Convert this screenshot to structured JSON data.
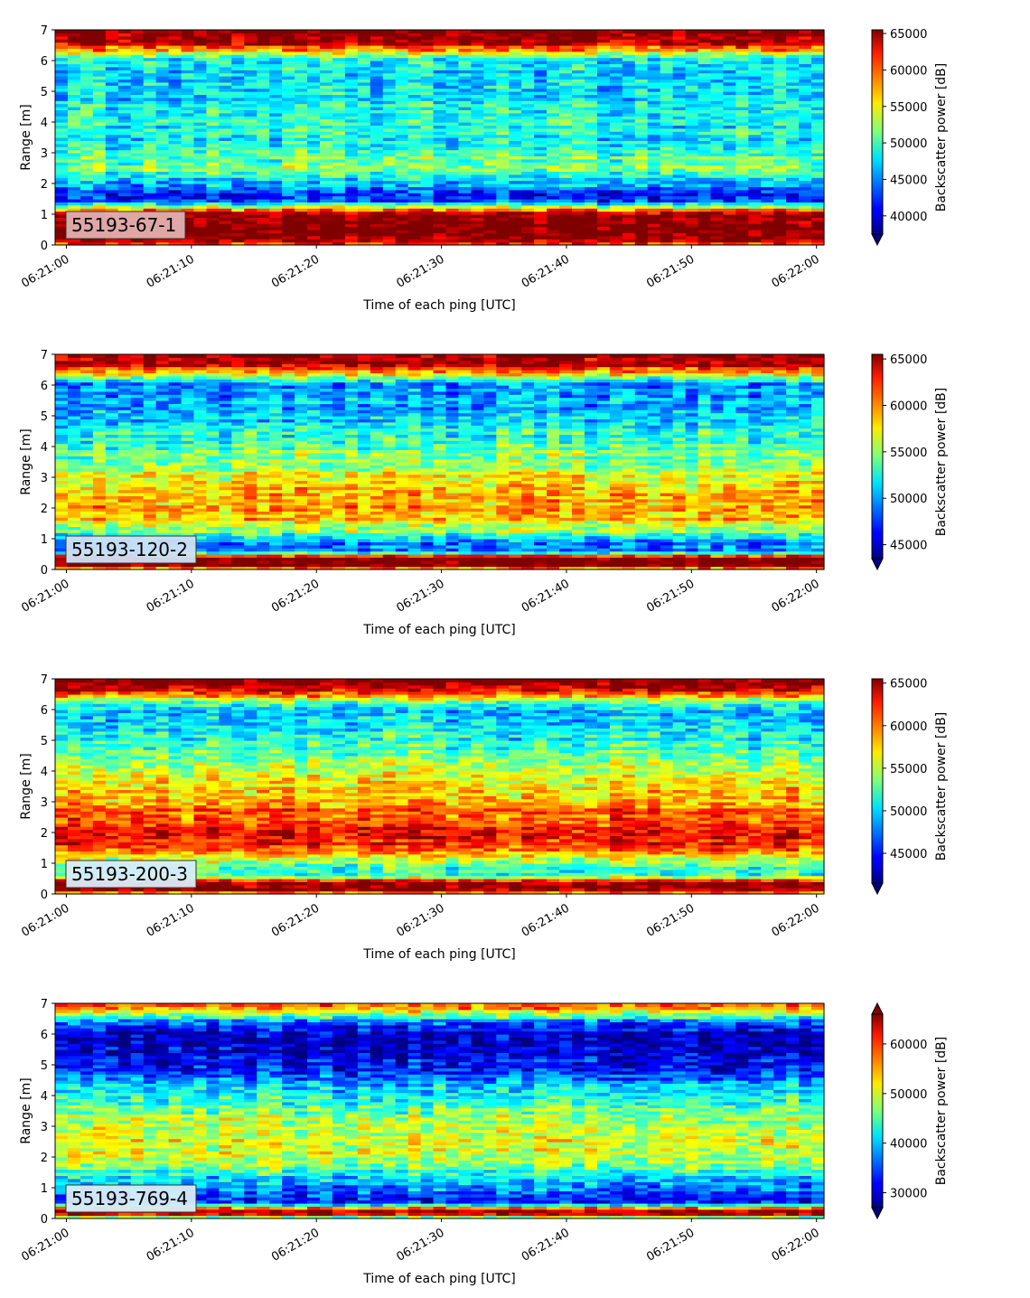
{
  "chart_data": [
    {
      "type": "heatmap",
      "label": "55193-67-1",
      "label_box_color": "#e0b0b0",
      "xlabel": "Time of each ping [UTC]",
      "ylabel": "Range [m]",
      "ylim": [
        0,
        7
      ],
      "xticks": [
        "06:21:00",
        "06:21:10",
        "06:21:20",
        "06:21:30",
        "06:21:40",
        "06:21:50",
        "06:22:00"
      ],
      "yticks": [
        "0",
        "1",
        "2",
        "3",
        "4",
        "5",
        "6",
        "7"
      ],
      "colorbar": {
        "label": "Backscatter power [dB]",
        "vmin": 37500,
        "vmax": 65500,
        "ticks": [
          "40000",
          "45000",
          "50000",
          "55000",
          "60000",
          "65000"
        ],
        "extend": "min",
        "colormap": "jet"
      },
      "profile": {
        "range_m": [
          0,
          0.2,
          0.3,
          0.6,
          1.0,
          1.2,
          1.4,
          1.6,
          1.9,
          2.3,
          2.6,
          3.0,
          3.5,
          4.0,
          4.5,
          5.0,
          5.5,
          6.0,
          6.2,
          6.5,
          6.8,
          7.0
        ],
        "typical_dB": [
          58000,
          66000,
          66000,
          66000,
          66000,
          56000,
          44000,
          41000,
          44000,
          50000,
          52000,
          49000,
          48000,
          49000,
          48000,
          47000,
          47000,
          48000,
          52000,
          62000,
          66000,
          66000
        ]
      }
    },
    {
      "type": "heatmap",
      "label": "55193-120-2",
      "label_box_color": "#cfe2f3",
      "xlabel": "Time of each ping [UTC]",
      "ylabel": "Range [m]",
      "ylim": [
        0,
        7
      ],
      "xticks": [
        "06:21:00",
        "06:21:10",
        "06:21:20",
        "06:21:30",
        "06:21:40",
        "06:21:50",
        "06:22:00"
      ],
      "yticks": [
        "0",
        "1",
        "2",
        "3",
        "4",
        "5",
        "6",
        "7"
      ],
      "colorbar": {
        "label": "Backscatter power [dB]",
        "vmin": 43500,
        "vmax": 65500,
        "ticks": [
          "45000",
          "50000",
          "55000",
          "60000",
          "65000"
        ],
        "extend": "min",
        "colormap": "jet"
      },
      "profile": {
        "range_m": [
          0,
          0.1,
          0.4,
          0.6,
          0.9,
          1.2,
          1.6,
          2.0,
          2.5,
          3.0,
          3.5,
          4.0,
          4.5,
          5.0,
          5.5,
          6.0,
          6.3,
          6.6,
          7.0
        ],
        "typical_dB": [
          52000,
          66000,
          66000,
          49000,
          49000,
          54000,
          58000,
          59000,
          58000,
          57000,
          55000,
          53500,
          52000,
          50500,
          49500,
          49000,
          55000,
          63000,
          66000
        ]
      }
    },
    {
      "type": "heatmap",
      "label": "55193-200-3",
      "label_box_color": "#d8ecf8",
      "xlabel": "Time of each ping [UTC]",
      "ylabel": "Range [m]",
      "ylim": [
        0,
        7
      ],
      "xticks": [
        "06:21:00",
        "06:21:10",
        "06:21:20",
        "06:21:30",
        "06:21:40",
        "06:21:50",
        "06:22:00"
      ],
      "yticks": [
        "0",
        "1",
        "2",
        "3",
        "4",
        "5",
        "6",
        "7"
      ],
      "colorbar": {
        "label": "Backscatter power [dB]",
        "vmin": 41500,
        "vmax": 65500,
        "ticks": [
          "45000",
          "50000",
          "55000",
          "60000",
          "65000"
        ],
        "extend": "min",
        "colormap": "jet"
      },
      "profile": {
        "range_m": [
          0,
          0.1,
          0.4,
          0.6,
          1.0,
          1.3,
          1.7,
          2.0,
          2.5,
          3.0,
          3.5,
          4.0,
          4.5,
          5.0,
          5.5,
          6.0,
          6.3,
          6.6,
          7.0
        ],
        "typical_dB": [
          55000,
          66000,
          66000,
          52000,
          53000,
          58000,
          62000,
          62500,
          61000,
          59000,
          57000,
          55000,
          53000,
          51000,
          49500,
          49000,
          54000,
          62000,
          66000
        ]
      }
    },
    {
      "type": "heatmap",
      "label": "55193-769-4",
      "label_box_color": "#d8ecf8",
      "xlabel": "Time of each ping [UTC]",
      "ylabel": "Range [m]",
      "ylim": [
        0,
        7
      ],
      "xticks": [
        "06:21:00",
        "06:21:10",
        "06:21:20",
        "06:21:30",
        "06:21:40",
        "06:21:50",
        "06:22:00"
      ],
      "yticks": [
        "0",
        "1",
        "2",
        "3",
        "4",
        "5",
        "6",
        "7"
      ],
      "colorbar": {
        "label": "Backscatter power [dB]",
        "vmin": 27000,
        "vmax": 66000,
        "ticks": [
          "30000",
          "40000",
          "50000",
          "60000"
        ],
        "extend": "both",
        "colormap": "jet"
      },
      "profile": {
        "range_m": [
          0,
          0.1,
          0.3,
          0.5,
          0.8,
          1.2,
          1.6,
          2.0,
          2.5,
          3.0,
          3.5,
          4.0,
          4.5,
          5.0,
          5.5,
          6.0,
          6.4,
          6.7,
          7.0
        ],
        "typical_dB": [
          33000,
          62000,
          64000,
          33000,
          35000,
          39000,
          45000,
          50000,
          50000,
          49000,
          46000,
          42000,
          37000,
          32000,
          30000,
          30000,
          34000,
          50000,
          60000
        ]
      }
    }
  ]
}
